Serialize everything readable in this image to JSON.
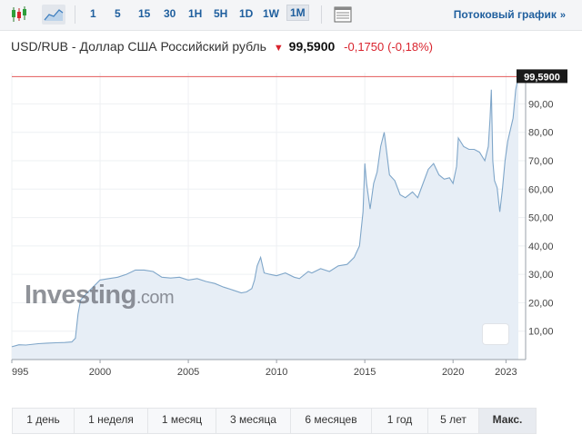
{
  "toolbar": {
    "timeframes": [
      "1",
      "5",
      "15",
      "30",
      "1H",
      "5H",
      "1D",
      "1W",
      "1M"
    ],
    "active_timeframe": "1M",
    "stream_label": "Потоковый график",
    "stream_chevron": "»"
  },
  "header": {
    "pair": "USD/RUB - Доллар США Российский рубль",
    "price": "99,5900",
    "change": "-0,1750",
    "change_pct": "(-0,18%)",
    "down_color": "#d9232d"
  },
  "watermark": {
    "brand": "Investing",
    "suffix": ".com"
  },
  "ranges": {
    "buttons": [
      "1 день",
      "1 неделя",
      "1 месяц",
      "3 месяца",
      "6 месяцев",
      "1 год",
      "5 лет",
      "Макс."
    ],
    "active": "Макс."
  },
  "chart_data": {
    "type": "area",
    "line_color": "#7fa6c9",
    "fill_color": "#e7eef6",
    "last_price_label": "99,5900",
    "last_price": 99.59,
    "x_ticks": [
      "995",
      "2000",
      "2005",
      "2010",
      "2015",
      "2020",
      "2023"
    ],
    "y_ticks": [
      "10,00",
      "20,00",
      "30,00",
      "40,00",
      "50,00",
      "60,00",
      "70,00",
      "80,00",
      "90,00"
    ],
    "ylim": [
      0,
      101
    ],
    "x_range": [
      1995.0,
      2023.7
    ],
    "series": [
      {
        "x": [
          1995.0,
          1995.4,
          1995.8,
          1996.5,
          1997.0,
          1997.5,
          1998.0,
          1998.4,
          1998.6,
          1998.75,
          1998.9,
          1999.2,
          1999.6,
          2000.0,
          2000.5,
          2001.0,
          2001.5,
          2002.0,
          2002.5,
          2003.0,
          2003.5,
          2004.0,
          2004.5,
          2005.0,
          2005.5,
          2006.0,
          2006.5,
          2007.0,
          2007.5,
          2008.0,
          2008.3,
          2008.6,
          2008.75,
          2008.9,
          2009.1,
          2009.3,
          2009.6,
          2010.0,
          2010.5,
          2011.0,
          2011.3,
          2011.8,
          2012.0,
          2012.5,
          2013.0,
          2013.5,
          2014.0,
          2014.4,
          2014.7,
          2014.9,
          2015.0,
          2015.1,
          2015.3,
          2015.5,
          2015.7,
          2015.9,
          2016.1,
          2016.4,
          2016.7,
          2017.0,
          2017.3,
          2017.7,
          2018.0,
          2018.3,
          2018.6,
          2018.9,
          2019.2,
          2019.5,
          2019.8,
          2020.0,
          2020.2,
          2020.3,
          2020.6,
          2020.9,
          2021.2,
          2021.5,
          2021.8,
          2022.0,
          2022.1,
          2022.17,
          2022.25,
          2022.35,
          2022.5,
          2022.65,
          2022.8,
          2022.95,
          2023.1,
          2023.25,
          2023.4,
          2023.55,
          2023.7
        ],
        "y": [
          4.5,
          5.2,
          5.1,
          5.6,
          5.8,
          5.9,
          6.0,
          6.2,
          7.5,
          16.0,
          21.0,
          23.0,
          25.5,
          28.0,
          28.5,
          29.0,
          30.0,
          31.5,
          31.5,
          31.0,
          29.0,
          28.7,
          29.0,
          28.0,
          28.5,
          27.5,
          26.8,
          25.5,
          24.5,
          23.5,
          23.8,
          25.0,
          28.0,
          33.0,
          36.0,
          30.5,
          30.0,
          29.5,
          30.5,
          29.0,
          28.5,
          31.0,
          30.5,
          32.0,
          31.0,
          33.0,
          33.5,
          36.0,
          40.0,
          52.0,
          69.0,
          62.0,
          53.0,
          62.0,
          66.0,
          75.0,
          80.0,
          65.0,
          63.0,
          58.0,
          57.0,
          59.0,
          57.0,
          62.0,
          67.0,
          69.0,
          65.0,
          63.5,
          64.0,
          62.0,
          68.0,
          78.0,
          75.0,
          74.0,
          74.0,
          73.0,
          70.0,
          75.0,
          85.0,
          95.0,
          70.0,
          63.0,
          60.5,
          52.0,
          60.0,
          70.0,
          77.0,
          81.0,
          85.0,
          95.0,
          99.59
        ]
      }
    ]
  }
}
